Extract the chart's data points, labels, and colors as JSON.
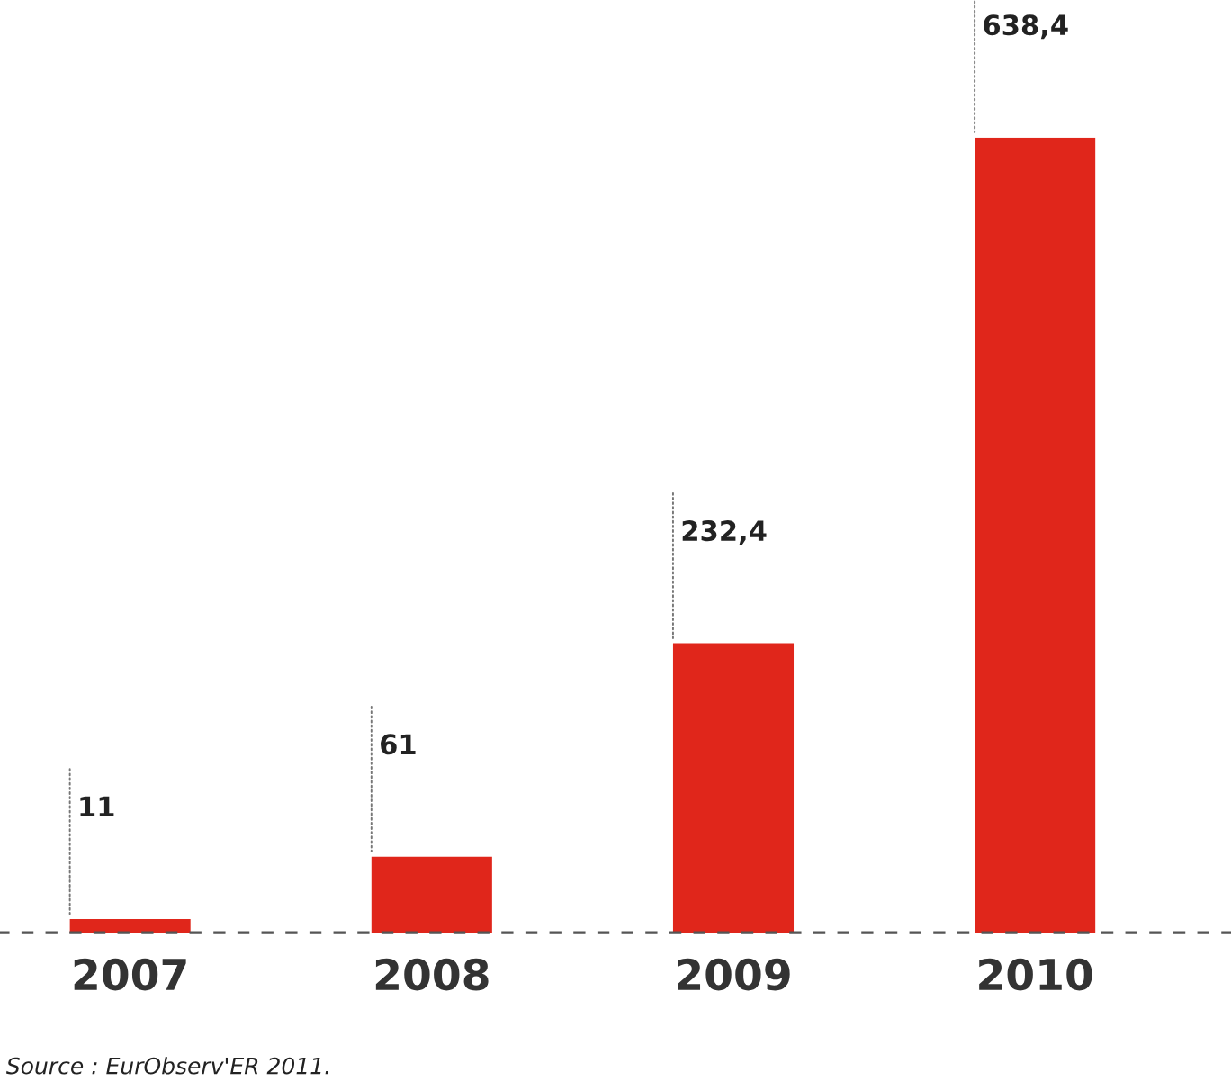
{
  "chart_data": {
    "type": "bar",
    "categories": [
      "2007",
      "2008",
      "2009",
      "2010"
    ],
    "values": [
      11,
      61,
      232.4,
      638.4
    ],
    "value_labels": [
      "11",
      "61",
      "232,4",
      "638,4"
    ],
    "color": "#e0261b",
    "annotations": [
      "Source : EurObserv'ER 2011."
    ]
  }
}
